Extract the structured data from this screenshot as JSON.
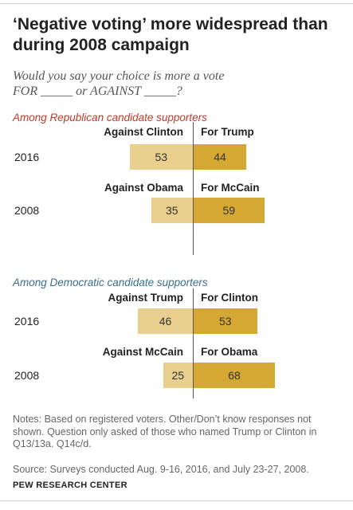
{
  "title": "‘Negative voting’ more widespread than during 2008 campaign",
  "subtitle": "Would you say your choice is more a vote FOR _____ or AGAINST _____?",
  "notes": "Notes: Based on registered voters. Other/Don’t know responses not shown. Question only asked of those who named Trump or Clinton in Q13/13a. Q14c/d.",
  "source": "Source: Surveys conducted Aug. 9-16, 2016, and July 23-27, 2008.",
  "brand": "PEW RESEARCH CENTER",
  "colors": {
    "against": "#e8cf8e",
    "for": "#d4a832",
    "republican_label": "#c0392b",
    "democratic_label": "#3a6d8c"
  },
  "chart_data": [
    {
      "type": "bar",
      "title": "Among Republican candidate supporters",
      "categories": [
        "2016",
        "2008"
      ],
      "row_labels": [
        {
          "against": "Against Clinton",
          "for": "For Trump"
        },
        {
          "against": "Against Obama",
          "for": "For McCain"
        }
      ],
      "series": [
        {
          "name": "Against",
          "values": [
            53,
            35
          ]
        },
        {
          "name": "For",
          "values": [
            44,
            59
          ]
        }
      ]
    },
    {
      "type": "bar",
      "title": "Among Democratic candidate supporters",
      "categories": [
        "2016",
        "2008"
      ],
      "row_labels": [
        {
          "against": "Against Trump",
          "for": "For Clinton"
        },
        {
          "against": "Against McCain",
          "for": "For Obama"
        }
      ],
      "series": [
        {
          "name": "Against",
          "values": [
            46,
            25
          ]
        },
        {
          "name": "For",
          "values": [
            53,
            68
          ]
        }
      ]
    }
  ]
}
